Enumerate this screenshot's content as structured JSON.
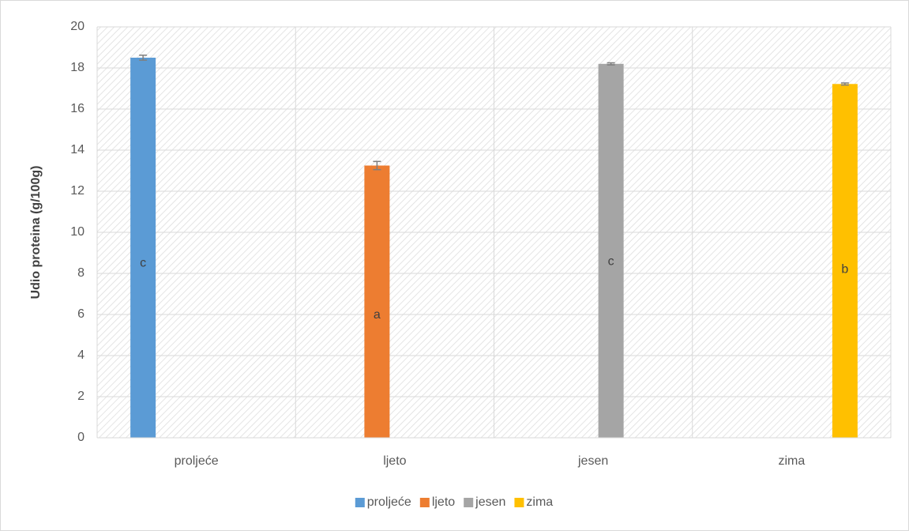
{
  "chart_data": {
    "type": "bar",
    "y_label": "Udio proteina (g/100g)",
    "categories": [
      "proljeće",
      "ljeto",
      "jesen",
      "zima"
    ],
    "series": [
      {
        "name": "proljeće",
        "color": "#5b9bd5",
        "values": [
          18.5,
          null,
          null,
          null
        ],
        "errors": [
          0.12,
          null,
          null,
          null
        ],
        "letters": [
          "c",
          null,
          null,
          null
        ]
      },
      {
        "name": "ljeto",
        "color": "#ed7d31",
        "values": [
          null,
          13.25,
          null,
          null
        ],
        "errors": [
          null,
          0.2,
          null,
          null
        ],
        "letters": [
          null,
          "a",
          null,
          null
        ]
      },
      {
        "name": "jesen",
        "color": "#a5a5a5",
        "values": [
          null,
          null,
          18.2,
          null
        ],
        "errors": [
          null,
          null,
          0.05,
          null
        ],
        "letters": [
          null,
          null,
          "c",
          null
        ]
      },
      {
        "name": "zima",
        "color": "#ffc000",
        "values": [
          null,
          null,
          null,
          17.22
        ],
        "errors": [
          null,
          null,
          null,
          0.05
        ],
        "letters": [
          null,
          null,
          null,
          "b"
        ]
      }
    ],
    "ylim": [
      0,
      20
    ],
    "yticks": [
      0,
      2,
      4,
      6,
      8,
      10,
      12,
      14,
      16,
      18,
      20
    ],
    "grid": true,
    "legend": "bottom"
  }
}
